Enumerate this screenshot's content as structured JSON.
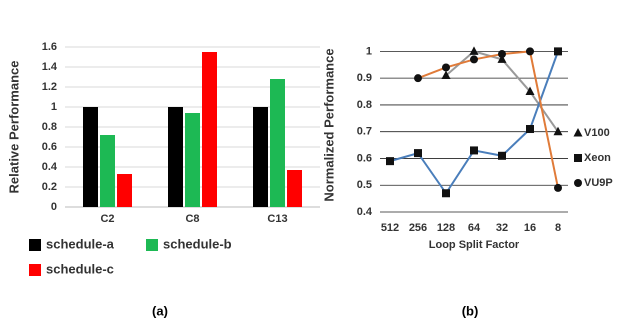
{
  "chart_data": [
    {
      "type": "bar",
      "ylabel": "Relative Performance",
      "caption": "(a)",
      "categories": [
        "C2",
        "C8",
        "C13"
      ],
      "series": [
        {
          "name": "schedule-a",
          "color": "#000000",
          "values": [
            1,
            1,
            1
          ]
        },
        {
          "name": "schedule-b",
          "color": "#1db954",
          "values": [
            0.72,
            0.94,
            1.28
          ]
        },
        {
          "name": "schedule-c",
          "color": "#ff0000",
          "values": [
            0.33,
            1.55,
            0.37
          ]
        }
      ],
      "ylim": [
        0,
        1.6
      ],
      "yticks": [
        0,
        0.2,
        0.4,
        0.6,
        0.8,
        1,
        1.2,
        1.4,
        1.6
      ],
      "grid": true,
      "legend": "bottom"
    },
    {
      "type": "line",
      "ylabel": "Normalized Performance",
      "xlabel": "Loop Split Factor",
      "caption": "(b)",
      "categories": [
        "512",
        "256",
        "128",
        "64",
        "32",
        "16",
        "8"
      ],
      "series": [
        {
          "name": "V100",
          "color": "#9a9a9a",
          "marker": "triangle",
          "values": [
            null,
            null,
            0.91,
            1.0,
            0.97,
            0.85,
            0.7
          ]
        },
        {
          "name": "Xeon",
          "color": "#4a7ebb",
          "marker": "square",
          "values": [
            0.59,
            0.62,
            0.47,
            0.63,
            0.61,
            0.71,
            1.0
          ]
        },
        {
          "name": "VU9P",
          "color": "#e07b39",
          "marker": "circle",
          "values": [
            null,
            0.9,
            0.94,
            0.97,
            0.99,
            1.0,
            0.49
          ]
        }
      ],
      "ylim": [
        0.4,
        1.05
      ],
      "yticks": [
        0.4,
        0.5,
        0.6,
        0.7,
        0.8,
        0.9,
        1
      ],
      "grid": true,
      "legend": "right"
    }
  ]
}
